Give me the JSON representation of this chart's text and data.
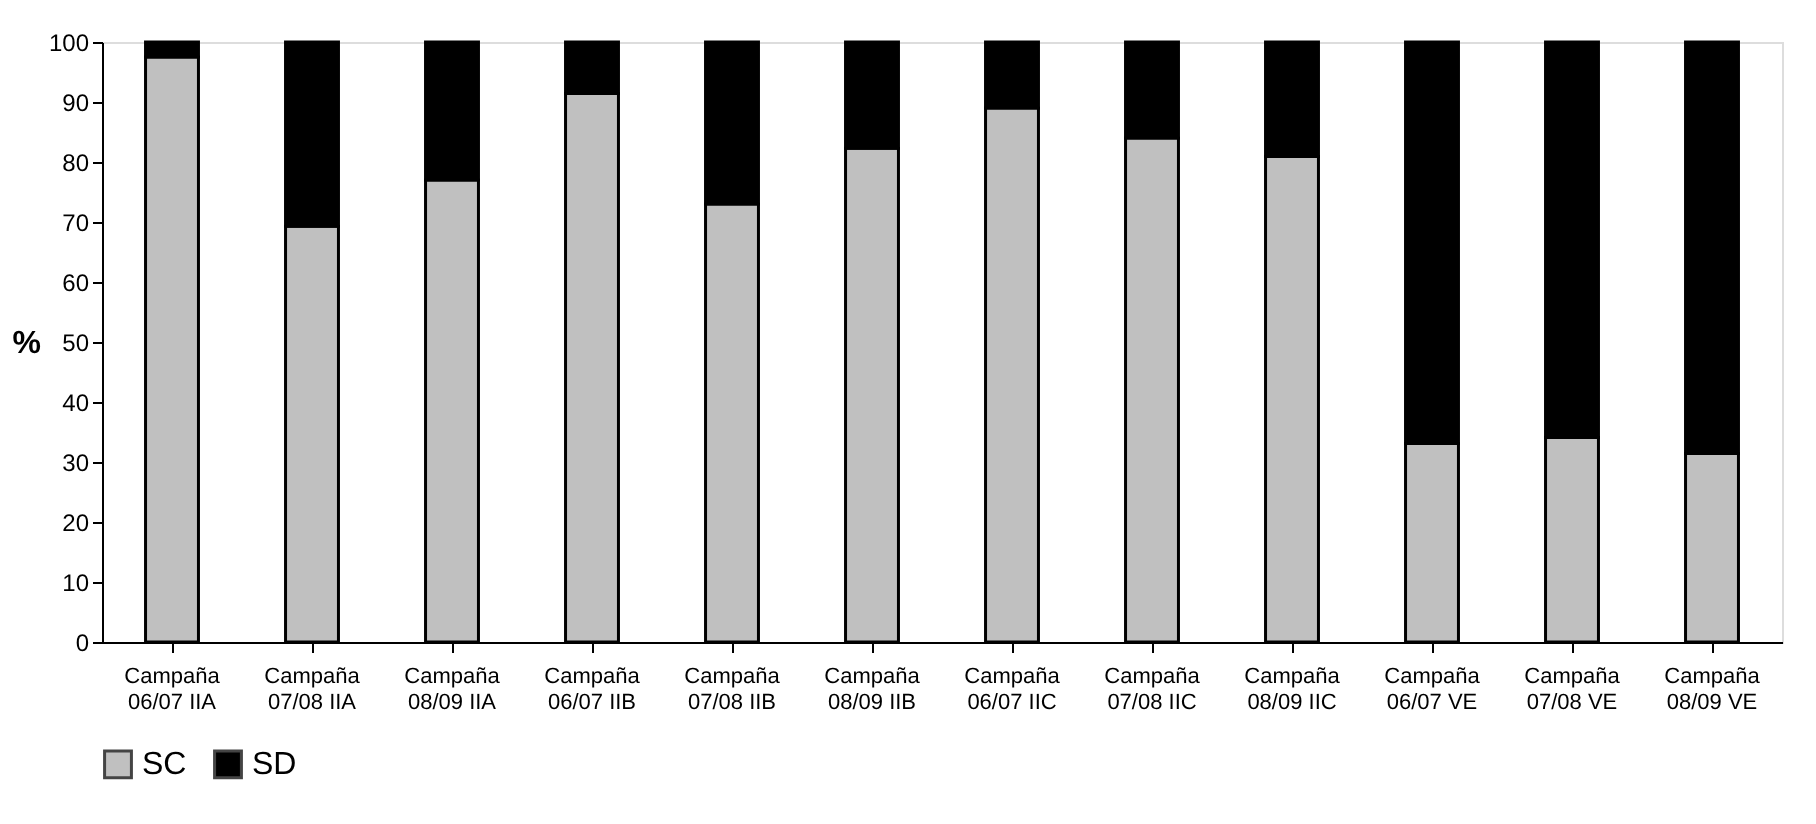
{
  "chart_data": {
    "type": "bar",
    "stacked": true,
    "ylabel": "%",
    "categories": [
      "Campaña\n06/07 IIA",
      "Campaña\n07/08 IIA",
      "Campaña\n08/09 IIA",
      "Campaña\n06/07 IIB",
      "Campaña\n07/08 IIB",
      "Campaña\n08/09 IIB",
      "Campaña\n06/07 IIC",
      "Campaña\n07/08 IIC",
      "Campaña\n08/09 IIC",
      "Campaña\n06/07 VE",
      "Campaña\n07/08 VE",
      "Campaña\n08/09 VE"
    ],
    "series": [
      {
        "name": "SC",
        "color": "#c0c0c0",
        "values": [
          97.5,
          69.3,
          77,
          91.4,
          73,
          82.3,
          89,
          84,
          80.9,
          33.1,
          34.1,
          31.4
        ]
      },
      {
        "name": "SD",
        "color": "#000000",
        "values": [
          2.5,
          30.7,
          23,
          8.6,
          27,
          17.7,
          11,
          16,
          19.1,
          66.9,
          65.9,
          68.6
        ]
      }
    ],
    "ylim": [
      0,
      100
    ],
    "yticks": [
      0,
      10,
      20,
      30,
      40,
      50,
      60,
      70,
      80,
      90,
      100
    ],
    "grid": false,
    "legend": "bottom"
  }
}
